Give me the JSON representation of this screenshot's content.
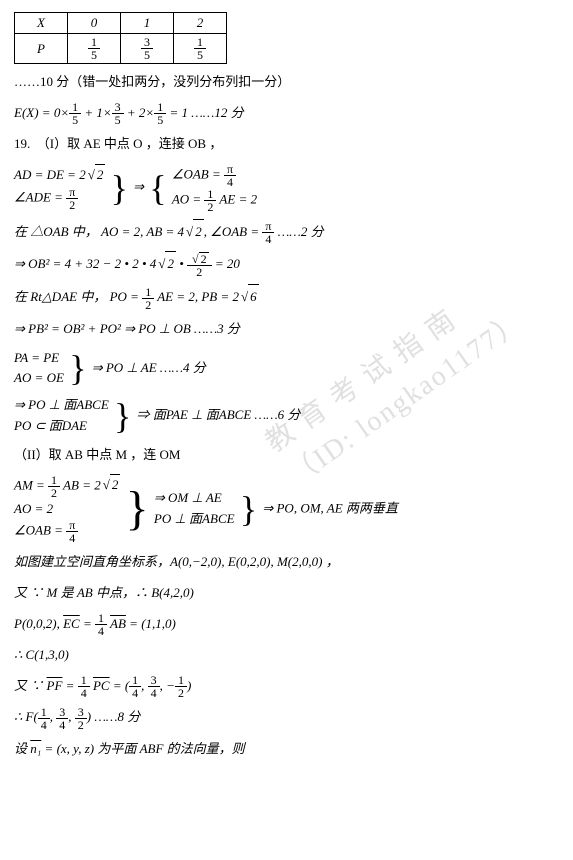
{
  "table": {
    "headers": [
      "X",
      "0",
      "1",
      "2"
    ],
    "prow_label": "P",
    "p": [
      {
        "n": "1",
        "d": "5"
      },
      {
        "n": "3",
        "d": "5"
      },
      {
        "n": "1",
        "d": "5"
      }
    ]
  },
  "watermark": "教 育 考 试 指 南\n（ID: longkao1177）",
  "lines": {
    "l1": "……10 分（错一处扣两分，没列分布列扣一分）",
    "l2a": "E(X) = 0×",
    "l2f1": {
      "n": "1",
      "d": "5"
    },
    "l2b": " + 1×",
    "l2f2": {
      "n": "3",
      "d": "5"
    },
    "l2c": " + 2×",
    "l2f3": {
      "n": "1",
      "d": "5"
    },
    "l2d": " = 1 ……12 分",
    "l3": "19.　（I）取 AE 中点 O ，连接 OB ，",
    "l4s1": "AD = DE = 2",
    "l4sqrt": "2",
    "l4s2a": "∠ADE = ",
    "l4s2f": {
      "n": "π",
      "d": "2"
    },
    "l4r1a": "∠OAB = ",
    "l4r1f": {
      "n": "π",
      "d": "4"
    },
    "l4r2a": "AO = ",
    "l4r2f": {
      "n": "1",
      "d": "2"
    },
    "l4r2b": " AE = 2",
    "l5a": "在 △OAB 中，  AO = 2, AB = 4",
    "l5sqrt": "2",
    "l5b": ", ∠OAB = ",
    "l5f": {
      "n": "π",
      "d": "4"
    },
    "l5c": " ……2 分",
    "l6a": "⇒ OB² = 4 + 32 − 2 • 2 • 4",
    "l6sqrt1": "2",
    "l6b": " • ",
    "l6fracn": "2",
    "l6fracd": "2",
    "l6c": " = 20",
    "l7a": "在 Rt△DAE 中，  PO = ",
    "l7f": {
      "n": "1",
      "d": "2"
    },
    "l7b": " AE = 2, PB = 2",
    "l7sqrt": "6",
    "l8": "⇒ PB² = OB² + PO² ⇒ PO ⊥ OB ……3 分",
    "l9s1": "PA = PE",
    "l9s2": "AO = OE",
    "l9r": "⇒ PO ⊥ AE ……4 分",
    "l10s1": "⇒ PO ⊥ 面ABCE",
    "l10s2": "PO ⊂ 面DAE",
    "l10r": "⇒ 面PAE ⊥ 面ABCE ……6 分",
    "l11": "（II）取 AB 中点 M ，连 OM",
    "l12s1a": "AM = ",
    "l12s1f": {
      "n": "1",
      "d": "2"
    },
    "l12s1b": " AB = 2",
    "l12s1sqrt": "2",
    "l12s2": "AO = 2",
    "l12s3a": "∠OAB = ",
    "l12s3f": {
      "n": "π",
      "d": "4"
    },
    "l12m1": "⇒ OM ⊥ AE",
    "l12m2": "PO ⊥ 面ABCE",
    "l12r": "⇒ PO, OM, AE 两两垂直",
    "l13": "如图建立空间直角坐标系，A(0,−2,0), E(0,2,0), M(2,0,0) ，",
    "l14": "又 ∵ M 是 AB 中点，∴ B(4,2,0)",
    "l15a": "P(0,0,2), ",
    "l15ec": "EC",
    "l15b": " = ",
    "l15f": {
      "n": "1",
      "d": "4"
    },
    "l15ab": "AB",
    "l15c": " = (1,1,0)",
    "l16": "∴ C(1,3,0)",
    "l17a": "又 ∵ ",
    "l17pf": "PF",
    "l17b": " = ",
    "l17f": {
      "n": "1",
      "d": "4"
    },
    "l17pc": "PC",
    "l17c": " = (",
    "l17f1": {
      "n": "1",
      "d": "4"
    },
    "l17d": ", ",
    "l17f2": {
      "n": "3",
      "d": "4"
    },
    "l17e": ", −",
    "l17f3": {
      "n": "1",
      "d": "2"
    },
    "l17g": ")",
    "l18a": "∴ F(",
    "l18f1": {
      "n": "1",
      "d": "4"
    },
    "l18b": ", ",
    "l18f2": {
      "n": "3",
      "d": "4"
    },
    "l18c": ", ",
    "l18f3": {
      "n": "3",
      "d": "2"
    },
    "l18d": ") ……8 分",
    "l19a": "设 ",
    "l19n": "n₁",
    "l19b": " = (x, y, z) 为平面 ABF 的法向量，则"
  }
}
